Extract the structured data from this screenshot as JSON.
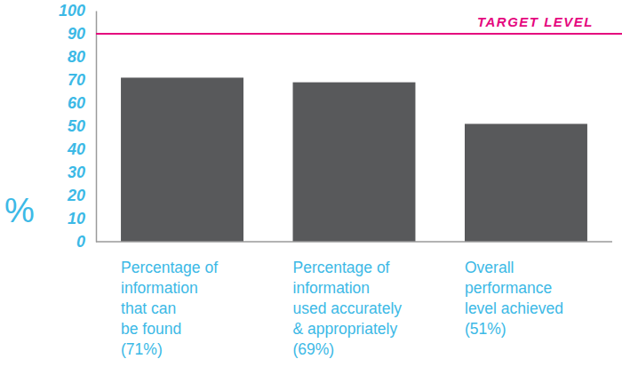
{
  "chart_data": {
    "type": "bar",
    "categories": [
      "Percentage of\ninformation\nthat can\nbe found\n(71%)",
      "Percentage of\ninformation\nused accurately\n& appropriately\n(69%)",
      "Overall\nperformance\nlevel achieved\n(51%)"
    ],
    "values": [
      71,
      69,
      51
    ],
    "color": "#58595b",
    "y_label": "%",
    "ylim": [
      0,
      100
    ],
    "yticks": [
      0,
      10,
      20,
      30,
      40,
      50,
      60,
      70,
      80,
      90,
      100
    ],
    "grid": false,
    "annotations": [
      {
        "text": "TARGET LEVEL",
        "y": 90,
        "color": "#e5077e"
      }
    ]
  }
}
